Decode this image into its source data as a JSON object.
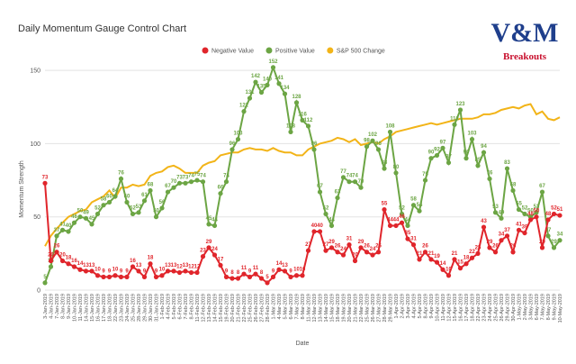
{
  "chart_data": {
    "type": "line",
    "title": "Daily Momentum Gauge Control Chart",
    "x_label": "Date",
    "y_label": "Momentum Strength",
    "categories": [
      "3-Jan-2019",
      "4-Jan-2019",
      "7-Jan-2019",
      "8-Jan-2019",
      "9-Jan-2019",
      "10-Jan-2019",
      "11-Jan-2019",
      "14-Jan-2019",
      "15-Jan-2019",
      "16-Jan-2019",
      "17-Jan-2019",
      "18-Jan-2019",
      "22-Jan-2019",
      "23-Jan-2019",
      "24-Jan-2019",
      "25-Jan-2019",
      "28-Jan-2019",
      "29-Jan-2019",
      "30-Jan-2019",
      "31-Jan-2019",
      "1-Feb-2019",
      "4-Feb-2019",
      "5-Feb-2019",
      "6-Feb-2019",
      "7-Feb-2019",
      "8-Feb-2019",
      "11-Feb-2019",
      "12-Feb-2019",
      "13-Feb-2019",
      "14-Feb-2019",
      "15-Feb-2019",
      "19-Feb-2019",
      "20-Feb-2019",
      "21-Feb-2019",
      "22-Feb-2019",
      "25-Feb-2019",
      "26-Feb-2019",
      "27-Feb-2019",
      "28-Feb-2019",
      "1-Mar-2019",
      "4-Mar-2019",
      "5-Mar-2019",
      "6-Mar-2019",
      "7-Mar-2019",
      "8-Mar-2019",
      "11-Mar-2019",
      "12-Mar-2019",
      "13-Mar-2019",
      "14-Mar-2019",
      "15-Mar-2019",
      "18-Mar-2019",
      "19-Mar-2019",
      "20-Mar-2019",
      "21-Mar-2019",
      "22-Mar-2019",
      "25-Mar-2019",
      "26-Mar-2019",
      "27-Mar-2019",
      "28-Mar-2019",
      "29-Mar-2019",
      "1-Apr-2019",
      "2-Apr-2019",
      "3-Apr-2019",
      "4-Apr-2019",
      "5-Apr-2019",
      "8-Apr-2019",
      "9-Apr-2019",
      "10-Apr-2019",
      "11-Apr-2019",
      "12-Apr-2019",
      "15-Apr-2019",
      "16-Apr-2019",
      "17-Apr-2019",
      "18-Apr-2019",
      "22-Apr-2019",
      "23-Apr-2019",
      "24-Apr-2019",
      "25-Apr-2019",
      "26-Apr-2019",
      "29-Apr-2019",
      "30-Apr-2019",
      "1-May-2019",
      "2-May-2019",
      "3-May-2019",
      "6-May-2019",
      "7-May-2019",
      "8-May-2019",
      "9-May-2019",
      "10-May-2019"
    ],
    "series": [
      {
        "name": "Negative Value",
        "color": "#e0252b",
        "markers": true,
        "labels": true,
        "values": [
          73,
          20,
          26,
          20,
          18,
          16,
          14,
          13,
          13,
          10,
          9,
          9,
          10,
          9,
          9,
          16,
          13,
          9,
          18,
          9,
          10,
          13,
          13,
          12,
          13,
          12,
          12,
          23,
          29,
          24,
          17,
          9,
          8,
          8,
          11,
          9,
          11,
          8,
          5,
          9,
          14,
          13,
          9,
          10,
          10,
          27,
          40,
          40,
          27,
          29,
          26,
          24,
          31,
          20,
          29,
          26,
          24,
          26,
          55,
          44,
          44,
          46,
          35,
          31,
          21,
          26,
          21,
          19,
          14,
          10,
          21,
          15,
          18,
          22,
          25,
          43,
          29,
          26,
          34,
          37,
          26,
          41,
          39,
          48,
          50,
          29,
          48,
          52,
          51
        ]
      },
      {
        "name": "Positive Value",
        "color": "#6ca544",
        "markers": true,
        "labels": true,
        "values": [
          5,
          16,
          37,
          41,
          40,
          46,
          50,
          49,
          45,
          52,
          58,
          60,
          64,
          76,
          60,
          52,
          53,
          61,
          68,
          50,
          56,
          67,
          70,
          73,
          73,
          74,
          75,
          74,
          45,
          44,
          66,
          74,
          96,
          103,
          122,
          131,
          142,
          135,
          140,
          152,
          141,
          134,
          108,
          128,
          116,
          112,
          96,
          67,
          52,
          44,
          63,
          77,
          74,
          74,
          70,
          98,
          102,
          96,
          83,
          108,
          80,
          52,
          44,
          58,
          54,
          75,
          90,
          92,
          97,
          87,
          113,
          123,
          90,
          103,
          85,
          94,
          76,
          53,
          49,
          83,
          68,
          55,
          52,
          50,
          53,
          67,
          37,
          29,
          34
        ]
      },
      {
        "name": "S&P 500 Change",
        "color": "#f2b418",
        "markers": false,
        "labels": false,
        "values": [
          30,
          37,
          42,
          46,
          50,
          52,
          54,
          55,
          60,
          62,
          64,
          68,
          63,
          70,
          70,
          72,
          71,
          72,
          78,
          80,
          81,
          84,
          85,
          83,
          80,
          80,
          80,
          85,
          87,
          88,
          92,
          93,
          94,
          94,
          96,
          97,
          96,
          96,
          95,
          97,
          95,
          94,
          94,
          92,
          92,
          96,
          98,
          100,
          101,
          102,
          104,
          103,
          101,
          103,
          99,
          100,
          101,
          100,
          103,
          105,
          108,
          109,
          110,
          111,
          112,
          113,
          114,
          113,
          114,
          115,
          116,
          117,
          117,
          117,
          118,
          120,
          120,
          121,
          123,
          124,
          125,
          124,
          126,
          127,
          120,
          122,
          117,
          116,
          118
        ]
      }
    ],
    "ylim": [
      0,
      155
    ],
    "yticks": [
      0,
      50,
      100,
      150
    ],
    "grid": true,
    "legend": "top"
  },
  "logo": {
    "mark": "V&M",
    "tagline": "Breakouts"
  }
}
